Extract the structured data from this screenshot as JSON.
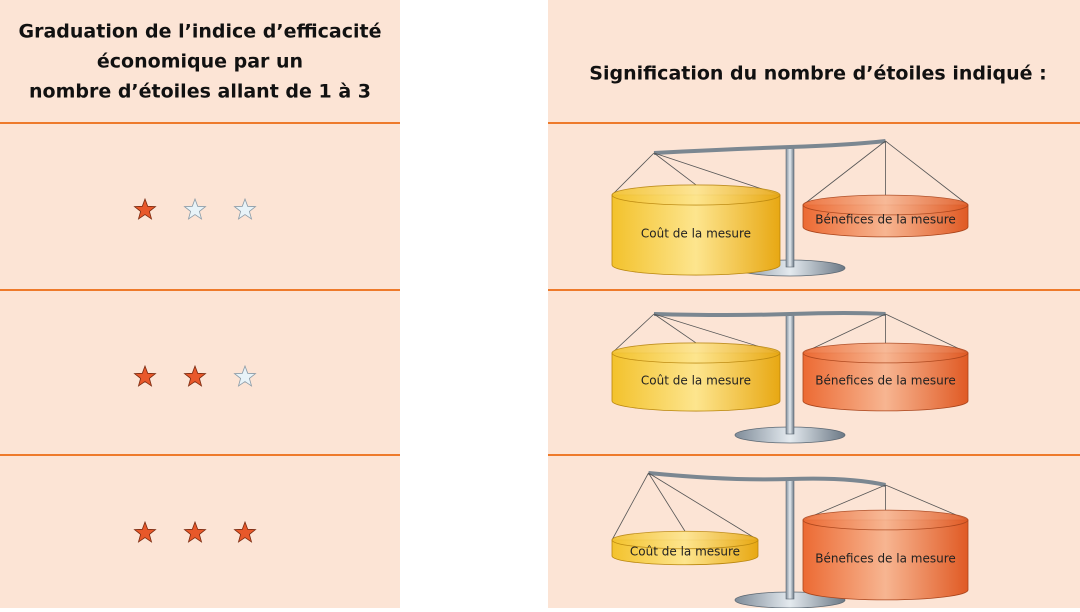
{
  "left_header": {
    "lines": [
      "Graduation de l’indice d’efficacité",
      "économique par un",
      "nombre d’étoiles allant de 1 à 3"
    ]
  },
  "right_header": "Signification du nombre d’étoiles indiqué :",
  "rows": [
    {
      "stars": 1,
      "cost_label": "Coût de la mesure",
      "benefit_label": "Bénefices de la mesure"
    },
    {
      "stars": 2,
      "cost_label": "Coût de la mesure",
      "benefit_label": "Bénefices de la mesure"
    },
    {
      "stars": 3,
      "cost_label": "Coût de la mesure",
      "benefit_label": "Bénefices de la mesure"
    }
  ]
}
